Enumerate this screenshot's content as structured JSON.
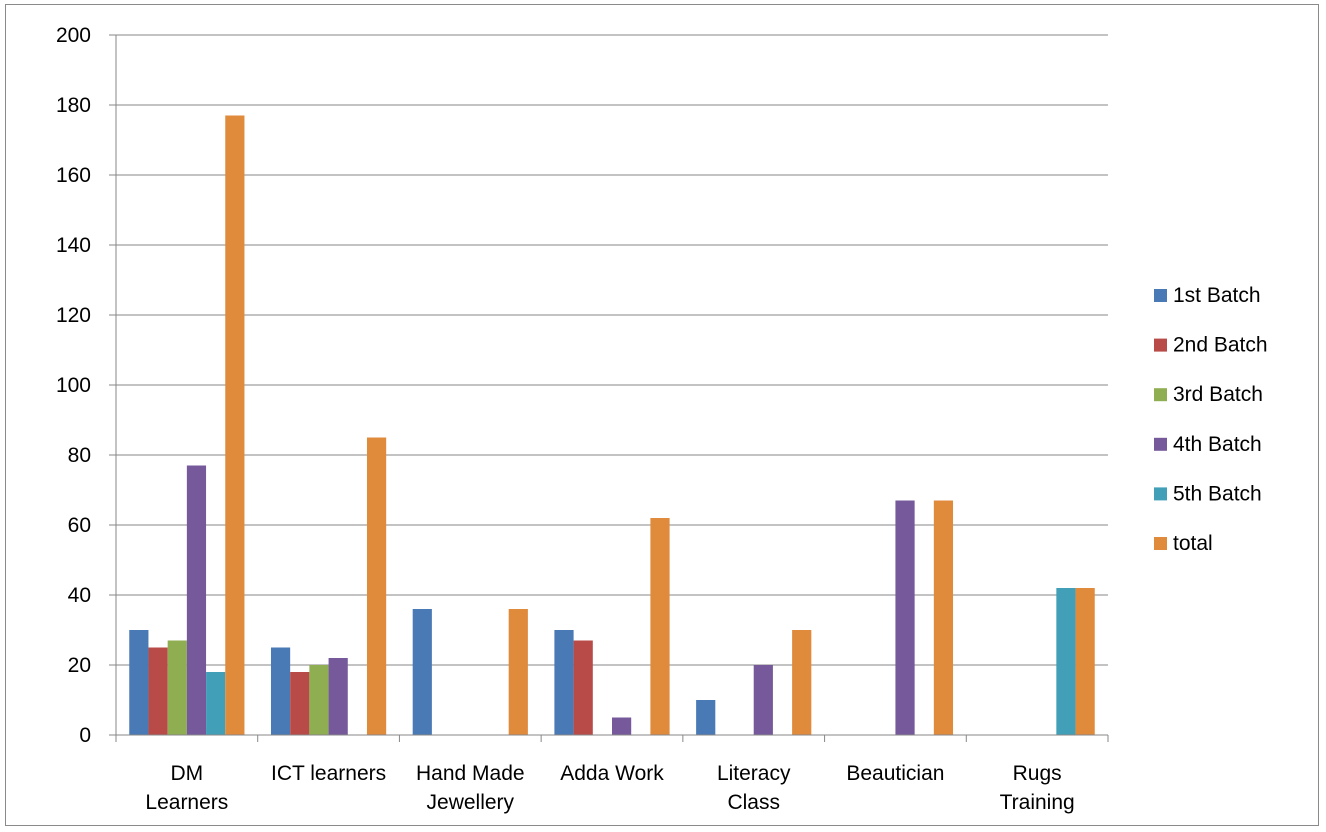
{
  "chart_data": {
    "type": "bar",
    "title": "",
    "xlabel": "",
    "ylabel": "",
    "ylim": [
      0,
      200
    ],
    "yticks": [
      0,
      20,
      40,
      60,
      80,
      100,
      120,
      140,
      160,
      180,
      200
    ],
    "grid": true,
    "legend_position": "right",
    "categories": [
      [
        "DM",
        "Learners"
      ],
      [
        "ICT learners"
      ],
      [
        "Hand Made",
        "Jewellery"
      ],
      [
        "Adda Work"
      ],
      [
        "Literacy",
        "Class"
      ],
      [
        "Beautician"
      ],
      [
        "Rugs",
        "Training"
      ]
    ],
    "series": [
      {
        "name": "1st Batch",
        "color": "#4a7ab5",
        "values": [
          30,
          25,
          36,
          30,
          10,
          0,
          0
        ]
      },
      {
        "name": "2nd Batch",
        "color": "#b84a47",
        "values": [
          25,
          18,
          0,
          27,
          0,
          0,
          0
        ]
      },
      {
        "name": "3rd Batch",
        "color": "#8fae52",
        "values": [
          27,
          20,
          0,
          0,
          0,
          0,
          0
        ]
      },
      {
        "name": "4th Batch",
        "color": "#76599a",
        "values": [
          77,
          22,
          0,
          5,
          20,
          67,
          0
        ]
      },
      {
        "name": "5th Batch",
        "color": "#41a0b8",
        "values": [
          18,
          0,
          0,
          0,
          0,
          0,
          42
        ]
      },
      {
        "name": "total",
        "color": "#e08a3c",
        "values": [
          177,
          85,
          36,
          62,
          30,
          67,
          42
        ]
      }
    ]
  }
}
